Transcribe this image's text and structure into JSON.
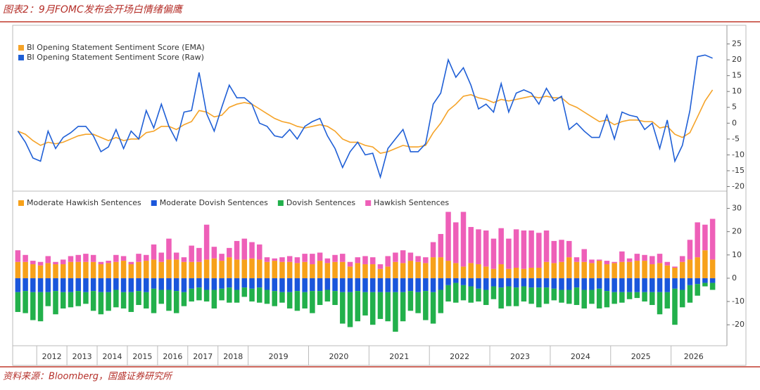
{
  "title": "图表2：9月FOMC发布会开场白情绪偏鹰",
  "source": "资料来源：Bloomberg，国盛证券研究所",
  "chart_data": [
    {
      "type": "line",
      "ylim": [
        -21,
        30
      ],
      "yticks": [
        25,
        20,
        15,
        10,
        5,
        0,
        -5,
        -10,
        -15,
        -20
      ],
      "series": [
        {
          "name": "BI Opening Statement Sentiment Score (EMA)",
          "color": "#f5a328",
          "values": [
            -2.5,
            -3.5,
            -5.5,
            -7,
            -6,
            -6.5,
            -6,
            -5,
            -4,
            -3.5,
            -3.5,
            -4.5,
            -5.5,
            -4.5,
            -5.5,
            -5,
            -5,
            -3,
            -2.5,
            -1,
            -1,
            -2,
            -0.5,
            0.5,
            4,
            3.5,
            2,
            2.5,
            5,
            6,
            6.5,
            6,
            4.5,
            3,
            1.5,
            0.5,
            0,
            -1,
            -1.5,
            -1,
            -0.5,
            -1,
            -2.5,
            -5,
            -6,
            -6,
            -7,
            -7.5,
            -9.5,
            -9,
            -8,
            -7,
            -7.5,
            -7.5,
            -7,
            -3,
            0,
            4,
            6,
            8.5,
            9,
            8,
            7.5,
            6.5,
            7.5,
            7,
            7.5,
            8,
            8.5,
            8,
            8.5,
            8,
            8,
            6,
            5,
            3.5,
            2,
            0.5,
            1,
            -0.5,
            0.5,
            1,
            1,
            0.5,
            0.5,
            -1.5,
            -1,
            -3.5,
            -4.5,
            -3,
            2,
            7,
            10.5
          ]
        },
        {
          "name": "BI Opening Statement Sentiment Score (Raw)",
          "color": "#1f5fd6",
          "values": [
            -2.5,
            -6,
            -11,
            -12,
            -2.5,
            -8,
            -4.5,
            -3,
            -1,
            -1,
            -4,
            -9,
            -7.5,
            -2,
            -8,
            -2.5,
            -5,
            4,
            -1.5,
            6,
            -1,
            -5.5,
            3.5,
            4,
            16,
            3,
            -2.5,
            5,
            12,
            8,
            8,
            6,
            0,
            -1,
            -4,
            -4.5,
            -2,
            -5,
            -1,
            0.5,
            1.5,
            -4,
            -8,
            -14,
            -9,
            -6,
            -10,
            -9.5,
            -17,
            -8,
            -5,
            -2,
            -9,
            -9,
            -6.5,
            6,
            9.5,
            20,
            14.5,
            17.5,
            12,
            4.5,
            6,
            3.5,
            12.5,
            3.5,
            9.5,
            10.5,
            9.5,
            6,
            11,
            7,
            8.5,
            -2,
            0,
            -2.5,
            -4.5,
            -4.5,
            2.5,
            -5,
            3.5,
            2.5,
            2,
            -2,
            0,
            -8,
            1,
            -12,
            -7,
            4,
            21,
            21.5,
            20.5
          ]
        }
      ]
    },
    {
      "type": "stacked-bar",
      "ylim": [
        -29,
        36.5
      ],
      "yticks": [
        30,
        20,
        10,
        0,
        -10,
        -20
      ],
      "categories": [
        null,
        null,
        null,
        "2012",
        null,
        null,
        null,
        "2013",
        null,
        null,
        null,
        "2014",
        null,
        null,
        null,
        "2015",
        null,
        null,
        null,
        "2016",
        null,
        null,
        null,
        "2017",
        null,
        null,
        null,
        "2018",
        null,
        null,
        null,
        "2019",
        null,
        null,
        null,
        null,
        null,
        null,
        null,
        "2020",
        null,
        null,
        null,
        null,
        null,
        null,
        null,
        "2021",
        null,
        null,
        null,
        null,
        null,
        null,
        null,
        "2022",
        null,
        null,
        null,
        null,
        null,
        null,
        null,
        "2023",
        null,
        null,
        null,
        null,
        null,
        null,
        null,
        "2024",
        null,
        null,
        null,
        null,
        null,
        null,
        null,
        "2025",
        null,
        null,
        null,
        null,
        null,
        null,
        null,
        "2026",
        null,
        null,
        null,
        null,
        null
      ],
      "series": [
        {
          "name": "Moderate Hawkish Sentences",
          "color": "#f7a11a",
          "values": [
            7,
            7,
            6,
            5.5,
            6.5,
            6,
            6,
            7,
            7,
            7,
            7,
            6,
            6.5,
            7,
            7.5,
            6,
            7,
            7.5,
            8,
            7,
            8,
            8,
            7,
            7,
            7,
            8,
            8.5,
            7.5,
            9,
            8,
            8,
            8.5,
            8,
            7,
            7.5,
            7,
            7,
            6.5,
            7,
            6,
            7.5,
            6.5,
            7,
            7,
            5,
            6.5,
            6,
            6,
            4,
            5,
            7,
            6.5,
            7.5,
            7,
            6.5,
            9,
            9,
            7.5,
            6.5,
            5,
            6.5,
            6,
            5,
            4,
            6,
            4,
            4.5,
            4,
            4.5,
            4.5,
            7,
            6.5,
            7,
            9,
            7,
            7,
            6.5,
            7.5,
            6,
            6.5,
            7,
            7,
            7.5,
            7.5,
            6,
            6.5,
            5.5,
            4.5,
            7,
            8,
            9,
            12,
            8
          ]
        },
        {
          "name": "Moderate Dovish Sentences",
          "color": "#1a56db",
          "values": [
            -6,
            -5.5,
            -6,
            -6,
            -6,
            -5.5,
            -6,
            -6,
            -5.5,
            -6,
            -5.5,
            -6,
            -6,
            -5,
            -6,
            -6,
            -5.5,
            -6,
            -4.5,
            -5,
            -5,
            -5.5,
            -6,
            -4.5,
            -4,
            -5,
            -5,
            -4.5,
            -4,
            -5,
            -4,
            -4.5,
            -4,
            -5,
            -5.5,
            -6,
            -6,
            -5.5,
            -6,
            -5.5,
            -5.5,
            -5,
            -5.5,
            -6,
            -6,
            -5.5,
            -6,
            -6,
            -6,
            -6,
            -6,
            -6,
            -5.5,
            -6,
            -5.5,
            -6,
            -5,
            -3,
            -2,
            -3,
            -3.5,
            -4.5,
            -5,
            -3.5,
            -4,
            -3.5,
            -4,
            -3.5,
            -4,
            -4,
            -4,
            -4.5,
            -5,
            -5,
            -4,
            -5,
            -5,
            -4.5,
            -5.5,
            -6,
            -6,
            -6,
            -6,
            -6,
            -6,
            -6,
            -6,
            -4.5,
            -5,
            -3,
            -2.5,
            -2,
            -2
          ]
        },
        {
          "name": "Dovish Sentences",
          "color": "#22b04b",
          "values": [
            -8.5,
            -9.5,
            -12,
            -12.5,
            -6,
            -10,
            -7,
            -6.5,
            -6.5,
            -5,
            -8.5,
            -9.5,
            -8,
            -7.5,
            -7,
            -8.5,
            -6,
            -7,
            -10.5,
            -6,
            -9,
            -9.5,
            -6,
            -5.5,
            -5.5,
            -5,
            -8,
            -5,
            -6.5,
            -5.5,
            -4,
            -5.5,
            -6.5,
            -6,
            -6.5,
            -4.5,
            -7,
            -8.5,
            -7,
            -9.5,
            -6,
            -5,
            -6,
            -13.5,
            -15,
            -13,
            -10,
            -14,
            -11.5,
            -12.5,
            -17,
            -12.5,
            -8.5,
            -9,
            -12.5,
            -13.5,
            -10,
            -7,
            -8.5,
            -6.5,
            -7,
            -5.5,
            -6.5,
            -5.5,
            -9,
            -8.5,
            -8,
            -6.5,
            -7,
            -8.5,
            -7,
            -5,
            -5.5,
            -6,
            -7.5,
            -8,
            -6,
            -8.5,
            -7,
            -5,
            -4.5,
            -3,
            -2.5,
            -4,
            -5.5,
            -9.5,
            -7,
            -15.5,
            -7.5,
            -7.5,
            -5,
            -1.5,
            -3
          ]
        },
        {
          "name": "Hawkish Sentences",
          "color": "#ee5fb8",
          "values": [
            5,
            3,
            1.5,
            1.5,
            3,
            1,
            2,
            2.5,
            3,
            3.5,
            3,
            1,
            1,
            3,
            2,
            1,
            3.5,
            2.5,
            6.5,
            4,
            9,
            3,
            2,
            7,
            6,
            15,
            5,
            3,
            4,
            8,
            9,
            7,
            6.5,
            2,
            1,
            2,
            2.5,
            2.5,
            3.5,
            4.5,
            3.5,
            2,
            3,
            3.5,
            2,
            2.5,
            3.5,
            3,
            2,
            4.5,
            4,
            5.5,
            3.5,
            2.5,
            2.5,
            6.5,
            10,
            21,
            17.5,
            23.5,
            15.5,
            15,
            15.5,
            13,
            15.5,
            13,
            16.5,
            16.5,
            16,
            15,
            13.5,
            9.5,
            9.5,
            7,
            2,
            5.5,
            1.5,
            0.5,
            1.5,
            0.5,
            4.5,
            1.5,
            3,
            2.5,
            3.5,
            4,
            1.5,
            0.5,
            2.5,
            8.5,
            15,
            11,
            17.5
          ]
        }
      ]
    }
  ]
}
